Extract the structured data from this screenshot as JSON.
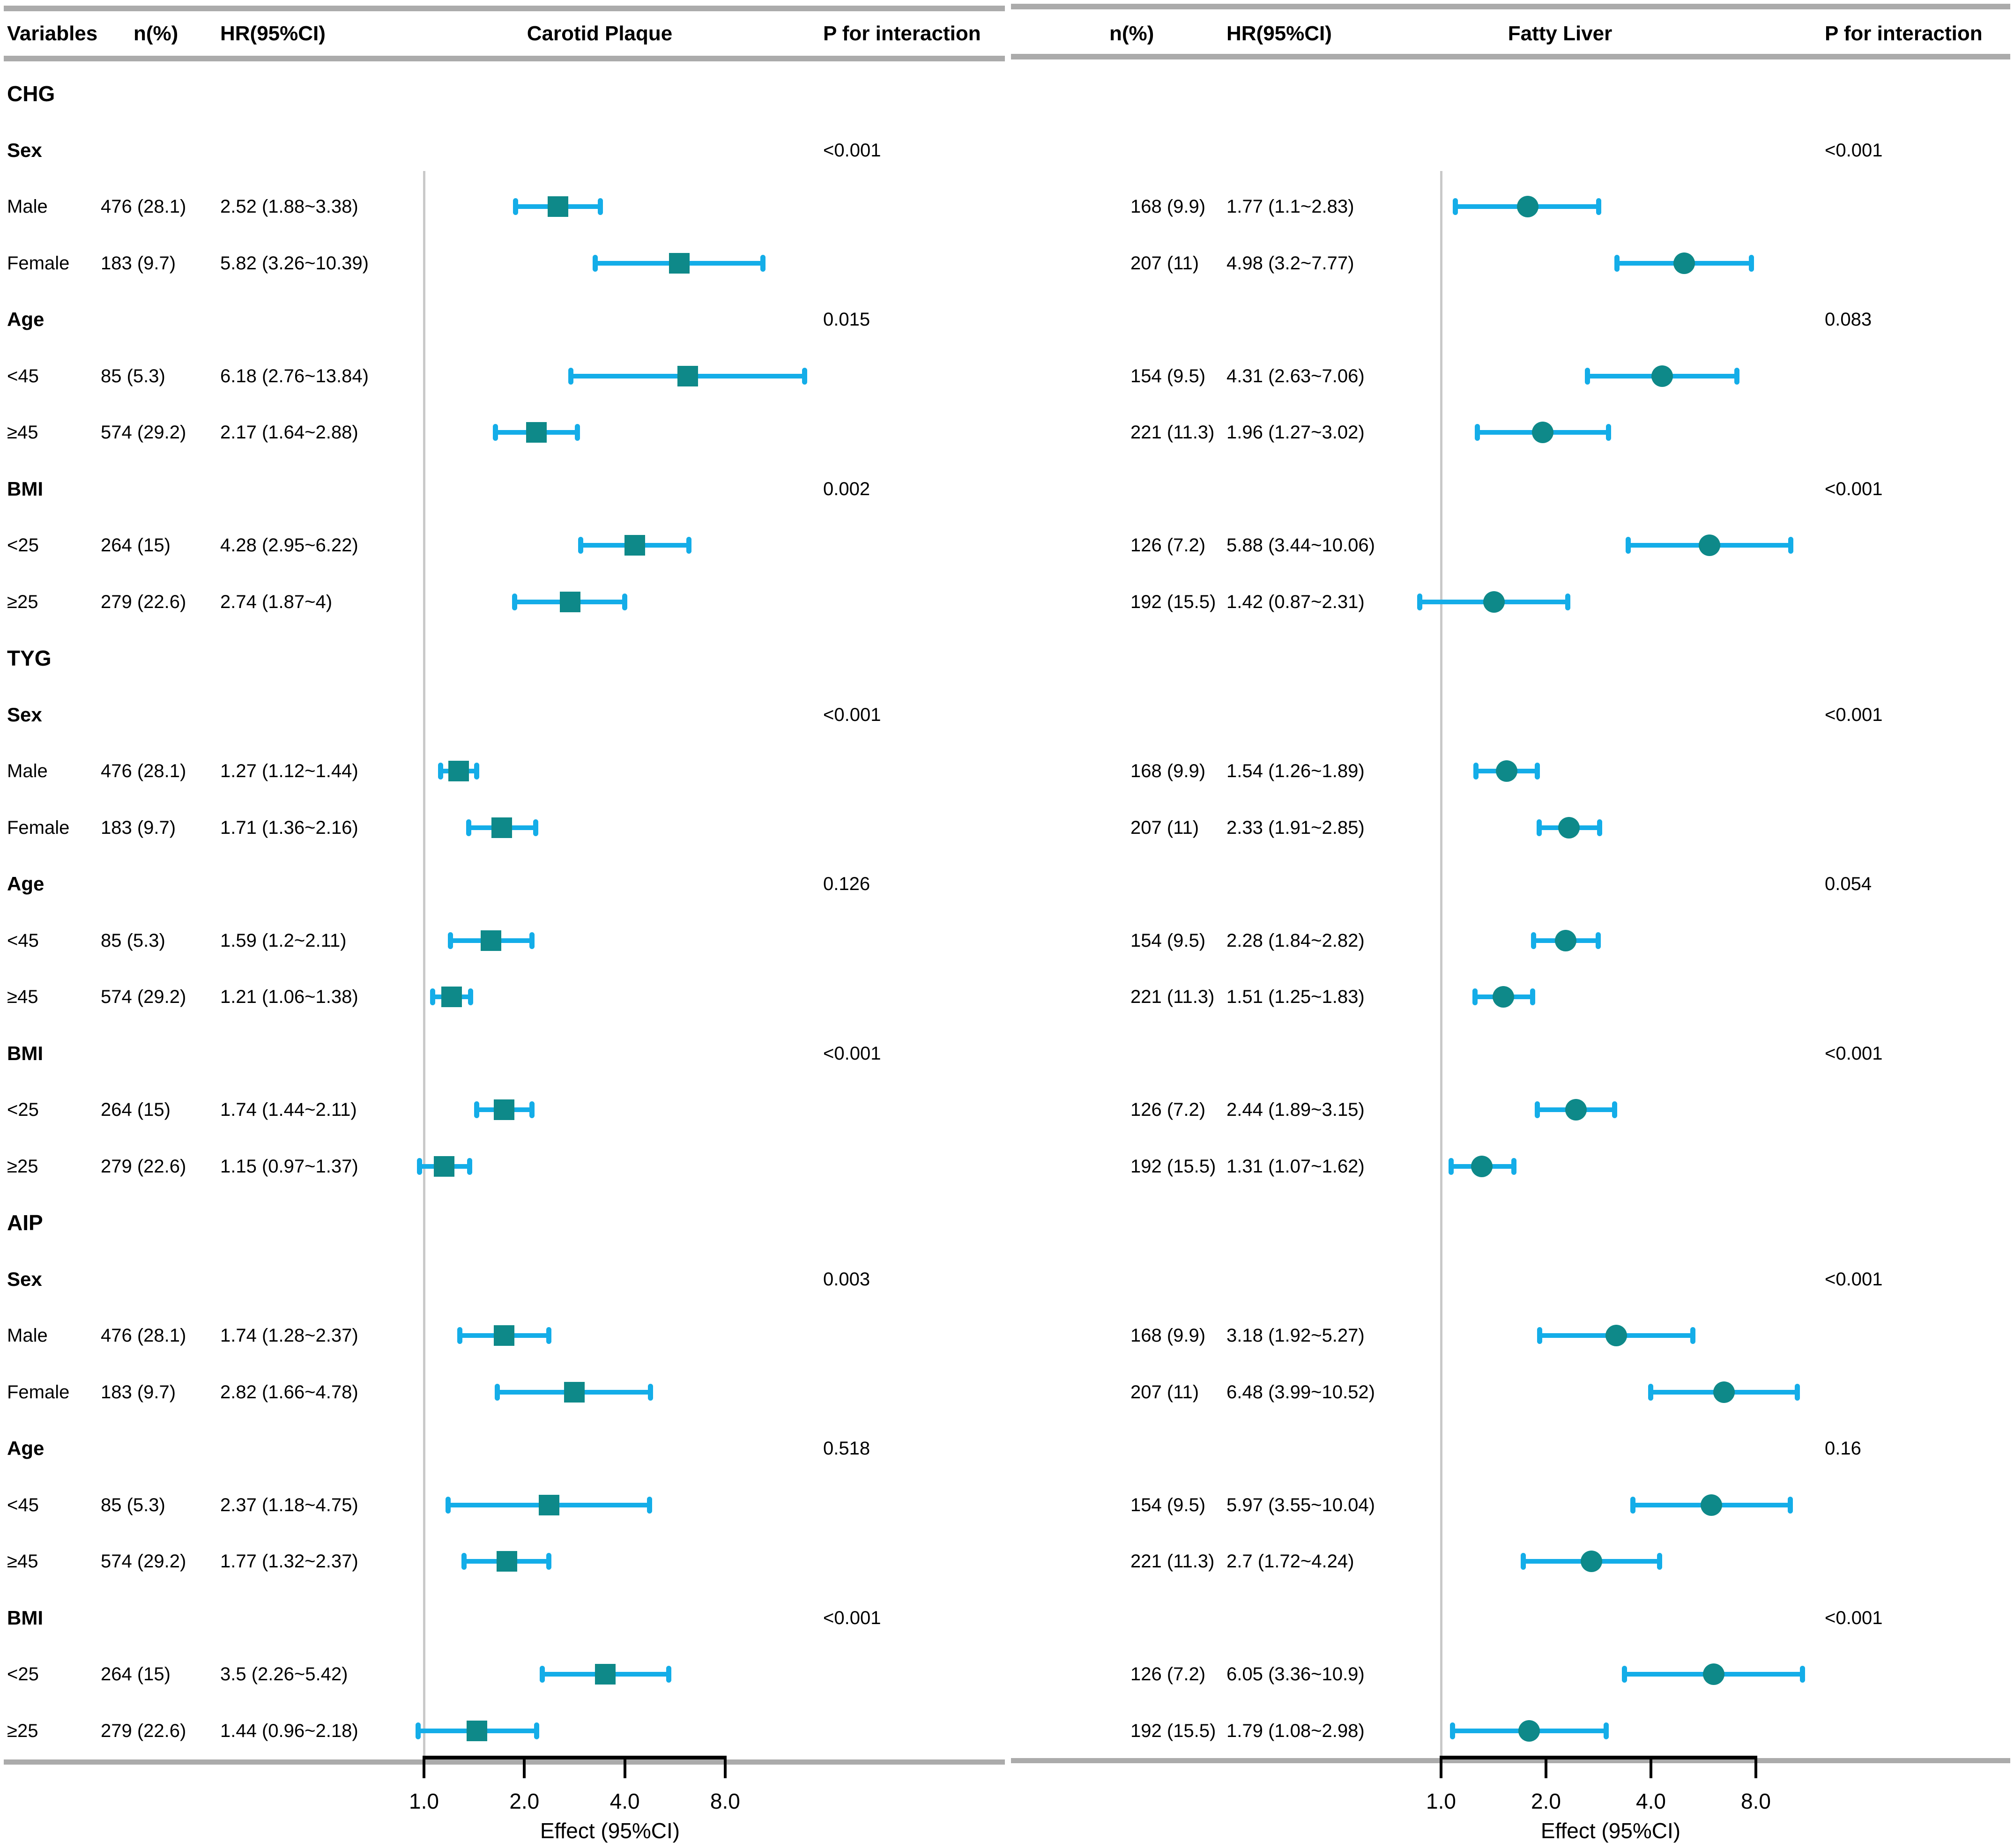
{
  "header": {
    "variables": "Variables",
    "n1": "n(%)",
    "hr1": "HR(95%CI)",
    "panel1": "Carotid Plaque",
    "p1": "P for interaction",
    "n2": "n(%)",
    "hr2": "HR(95%CI)",
    "panel2": "Fatty Liver",
    "p2": "P for interaction"
  },
  "axis": {
    "scale": "log2",
    "ticks": [
      "1.0",
      "2.0",
      "4.0",
      "8.0"
    ],
    "tick_values": [
      1,
      2,
      4,
      8
    ],
    "label": "Effect (95%CI)"
  },
  "colors": {
    "marker": "#0E8989",
    "ci": "#14ADE8",
    "rule": "#ABABAB",
    "refline": "#C9C9C9",
    "axis": "#000000"
  },
  "chart_data": {
    "type": "forest",
    "outcomes": [
      "Carotid Plaque",
      "Fatty Liver"
    ],
    "x_axis": {
      "scale": "log2",
      "ticks": [
        1.0,
        2.0,
        4.0,
        8.0
      ],
      "label": "Effect (95%CI)",
      "reference_line": 1.0
    },
    "marker_shapes": {
      "carotid": "square",
      "fatty": "circle"
    },
    "sections": [
      {
        "name": "CHG",
        "groups": [
          {
            "label": "Sex",
            "p": [
              "<0.001",
              "<0.001"
            ],
            "rows": [
              {
                "label": "Male",
                "carotid": {
                  "n": "476 (28.1)",
                  "hr": "2.52 (1.88~3.38)",
                  "est": 2.52,
                  "lo": 1.88,
                  "hi": 3.38
                },
                "fatty": {
                  "n": "168 (9.9)",
                  "hr": "1.77 (1.1~2.83)",
                  "est": 1.77,
                  "lo": 1.1,
                  "hi": 2.83
                }
              },
              {
                "label": "Female",
                "carotid": {
                  "n": "183 (9.7)",
                  "hr": "5.82 (3.26~10.39)",
                  "est": 5.82,
                  "lo": 3.26,
                  "hi": 10.39
                },
                "fatty": {
                  "n": "207 (11)",
                  "hr": "4.98 (3.2~7.77)",
                  "est": 4.98,
                  "lo": 3.2,
                  "hi": 7.77
                }
              }
            ]
          },
          {
            "label": "Age",
            "p": [
              "0.015",
              "0.083"
            ],
            "rows": [
              {
                "label": "<45",
                "carotid": {
                  "n": "85 (5.3)",
                  "hr": "6.18 (2.76~13.84)",
                  "est": 6.18,
                  "lo": 2.76,
                  "hi": 13.84
                },
                "fatty": {
                  "n": "154 (9.5)",
                  "hr": "4.31 (2.63~7.06)",
                  "est": 4.31,
                  "lo": 2.63,
                  "hi": 7.06
                }
              },
              {
                "label": "≥45",
                "carotid": {
                  "n": "574 (29.2)",
                  "hr": "2.17 (1.64~2.88)",
                  "est": 2.17,
                  "lo": 1.64,
                  "hi": 2.88
                },
                "fatty": {
                  "n": "221 (11.3)",
                  "hr": "1.96 (1.27~3.02)",
                  "est": 1.96,
                  "lo": 1.27,
                  "hi": 3.02
                }
              }
            ]
          },
          {
            "label": "BMI",
            "p": [
              "0.002",
              "<0.001"
            ],
            "rows": [
              {
                "label": "<25",
                "carotid": {
                  "n": "264 (15)",
                  "hr": "4.28 (2.95~6.22)",
                  "est": 4.28,
                  "lo": 2.95,
                  "hi": 6.22
                },
                "fatty": {
                  "n": "126 (7.2)",
                  "hr": "5.88 (3.44~10.06)",
                  "est": 5.88,
                  "lo": 3.44,
                  "hi": 10.06
                }
              },
              {
                "label": "≥25",
                "carotid": {
                  "n": "279 (22.6)",
                  "hr": "2.74 (1.87~4)",
                  "est": 2.74,
                  "lo": 1.87,
                  "hi": 4
                },
                "fatty": {
                  "n": "192 (15.5)",
                  "hr": "1.42 (0.87~2.31)",
                  "est": 1.42,
                  "lo": 0.87,
                  "hi": 2.31
                }
              }
            ]
          }
        ]
      },
      {
        "name": "TYG",
        "groups": [
          {
            "label": "Sex",
            "p": [
              "<0.001",
              "<0.001"
            ],
            "rows": [
              {
                "label": "Male",
                "carotid": {
                  "n": "476 (28.1)",
                  "hr": "1.27 (1.12~1.44)",
                  "est": 1.27,
                  "lo": 1.12,
                  "hi": 1.44
                },
                "fatty": {
                  "n": "168 (9.9)",
                  "hr": "1.54 (1.26~1.89)",
                  "est": 1.54,
                  "lo": 1.26,
                  "hi": 1.89
                }
              },
              {
                "label": "Female",
                "carotid": {
                  "n": "183 (9.7)",
                  "hr": "1.71 (1.36~2.16)",
                  "est": 1.71,
                  "lo": 1.36,
                  "hi": 2.16
                },
                "fatty": {
                  "n": "207 (11)",
                  "hr": "2.33 (1.91~2.85)",
                  "est": 2.33,
                  "lo": 1.91,
                  "hi": 2.85
                }
              }
            ]
          },
          {
            "label": "Age",
            "p": [
              "0.126",
              "0.054"
            ],
            "rows": [
              {
                "label": "<45",
                "carotid": {
                  "n": "85 (5.3)",
                  "hr": "1.59 (1.2~2.11)",
                  "est": 1.59,
                  "lo": 1.2,
                  "hi": 2.11
                },
                "fatty": {
                  "n": "154 (9.5)",
                  "hr": "2.28 (1.84~2.82)",
                  "est": 2.28,
                  "lo": 1.84,
                  "hi": 2.82
                }
              },
              {
                "label": "≥45",
                "carotid": {
                  "n": "574 (29.2)",
                  "hr": "1.21 (1.06~1.38)",
                  "est": 1.21,
                  "lo": 1.06,
                  "hi": 1.38
                },
                "fatty": {
                  "n": "221 (11.3)",
                  "hr": "1.51 (1.25~1.83)",
                  "est": 1.51,
                  "lo": 1.25,
                  "hi": 1.83
                }
              }
            ]
          },
          {
            "label": "BMI",
            "p": [
              "<0.001",
              "<0.001"
            ],
            "rows": [
              {
                "label": "<25",
                "carotid": {
                  "n": "264 (15)",
                  "hr": "1.74 (1.44~2.11)",
                  "est": 1.74,
                  "lo": 1.44,
                  "hi": 2.11
                },
                "fatty": {
                  "n": "126 (7.2)",
                  "hr": "2.44 (1.89~3.15)",
                  "est": 2.44,
                  "lo": 1.89,
                  "hi": 3.15
                }
              },
              {
                "label": "≥25",
                "carotid": {
                  "n": "279 (22.6)",
                  "hr": "1.15 (0.97~1.37)",
                  "est": 1.15,
                  "lo": 0.97,
                  "hi": 1.37
                },
                "fatty": {
                  "n": "192 (15.5)",
                  "hr": "1.31 (1.07~1.62)",
                  "est": 1.31,
                  "lo": 1.07,
                  "hi": 1.62
                }
              }
            ]
          }
        ]
      },
      {
        "name": "AIP",
        "groups": [
          {
            "label": "Sex",
            "p": [
              "0.003",
              "<0.001"
            ],
            "rows": [
              {
                "label": "Male",
                "carotid": {
                  "n": "476 (28.1)",
                  "hr": "1.74 (1.28~2.37)",
                  "est": 1.74,
                  "lo": 1.28,
                  "hi": 2.37
                },
                "fatty": {
                  "n": "168 (9.9)",
                  "hr": "3.18 (1.92~5.27)",
                  "est": 3.18,
                  "lo": 1.92,
                  "hi": 5.27
                }
              },
              {
                "label": "Female",
                "carotid": {
                  "n": "183 (9.7)",
                  "hr": "2.82 (1.66~4.78)",
                  "est": 2.82,
                  "lo": 1.66,
                  "hi": 4.78
                },
                "fatty": {
                  "n": "207 (11)",
                  "hr": "6.48 (3.99~10.52)",
                  "est": 6.48,
                  "lo": 3.99,
                  "hi": 10.52
                }
              }
            ]
          },
          {
            "label": "Age",
            "p": [
              "0.518",
              "0.16"
            ],
            "rows": [
              {
                "label": "<45",
                "carotid": {
                  "n": "85 (5.3)",
                  "hr": "2.37 (1.18~4.75)",
                  "est": 2.37,
                  "lo": 1.18,
                  "hi": 4.75
                },
                "fatty": {
                  "n": "154 (9.5)",
                  "hr": "5.97 (3.55~10.04)",
                  "est": 5.97,
                  "lo": 3.55,
                  "hi": 10.04
                }
              },
              {
                "label": "≥45",
                "carotid": {
                  "n": "574 (29.2)",
                  "hr": "1.77 (1.32~2.37)",
                  "est": 1.77,
                  "lo": 1.32,
                  "hi": 2.37
                },
                "fatty": {
                  "n": "221 (11.3)",
                  "hr": "2.7 (1.72~4.24)",
                  "est": 2.7,
                  "lo": 1.72,
                  "hi": 4.24
                }
              }
            ]
          },
          {
            "label": "BMI",
            "p": [
              "<0.001",
              "<0.001"
            ],
            "rows": [
              {
                "label": "<25",
                "carotid": {
                  "n": "264 (15)",
                  "hr": "3.5 (2.26~5.42)",
                  "est": 3.5,
                  "lo": 2.26,
                  "hi": 5.42
                },
                "fatty": {
                  "n": "126 (7.2)",
                  "hr": "6.05 (3.36~10.9)",
                  "est": 6.05,
                  "lo": 3.36,
                  "hi": 10.9
                }
              },
              {
                "label": "≥25",
                "carotid": {
                  "n": "279 (22.6)",
                  "hr": "1.44 (0.96~2.18)",
                  "est": 1.44,
                  "lo": 0.96,
                  "hi": 2.18
                },
                "fatty": {
                  "n": "192 (15.5)",
                  "hr": "1.79 (1.08~2.98)",
                  "est": 1.79,
                  "lo": 1.08,
                  "hi": 2.98
                }
              }
            ]
          }
        ]
      }
    ]
  }
}
